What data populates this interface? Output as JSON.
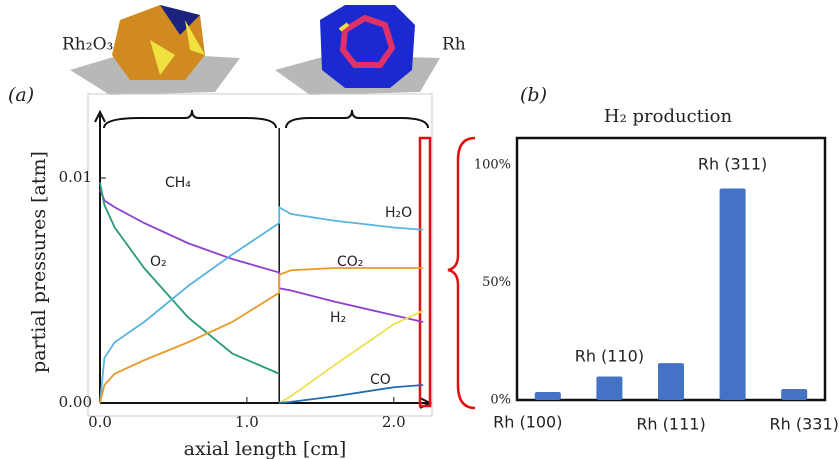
{
  "crystals": [
    "Rh₂O₃",
    "Rh"
  ],
  "chart_data": [
    {
      "type": "line",
      "panel": "(a)",
      "ylabel": "partial pressures [atm]",
      "xlabel": "axial length [cm]",
      "x": [
        0,
        0.03,
        0.1,
        0.3,
        0.6,
        0.9,
        1.22,
        1.22,
        1.3,
        1.6,
        2.0,
        2.2
      ],
      "xlim": [
        0,
        2.26
      ],
      "ylim": [
        0,
        0.0128
      ],
      "xticks": [
        {
          "value": 0,
          "label": "0.0"
        },
        {
          "value": 1,
          "label": "1.0"
        },
        {
          "value": 2,
          "label": "2.0"
        }
      ],
      "yticks": [
        {
          "value": 0,
          "label": "0.00"
        },
        {
          "value": 0.01,
          "label": "0.01"
        }
      ],
      "series": [
        {
          "name": "CH₄",
          "color": "#8e3fd1",
          "values": [
            0.0095,
            0.009,
            0.0087,
            0.008,
            0.0071,
            0.0064,
            0.0058,
            0.0051,
            0.005,
            0.0045,
            0.0039,
            0.0036
          ]
        },
        {
          "name": "O₂",
          "color": "#2a9a78",
          "values": [
            0.0098,
            0.0088,
            0.0078,
            0.006,
            0.0038,
            0.0022,
            0.0013,
            null,
            null,
            null,
            null,
            null
          ]
        },
        {
          "name": "H₂O",
          "color": "#5ab4e0",
          "values": [
            0,
            0.002,
            0.0027,
            0.0036,
            0.0052,
            0.0066,
            0.008,
            0.0087,
            0.0084,
            0.0081,
            0.0078,
            0.0077
          ]
        },
        {
          "name": "CO₂",
          "color": "#e89a2a",
          "values": [
            0,
            0.0008,
            0.0013,
            0.0019,
            0.0027,
            0.0036,
            0.0049,
            0.0057,
            0.0059,
            0.006,
            0.006,
            0.006
          ]
        },
        {
          "name": "H₂",
          "color": "#f0e050",
          "values": [
            null,
            null,
            null,
            null,
            null,
            null,
            null,
            0,
            0.0003,
            0.0017,
            0.0035,
            0.0041
          ]
        },
        {
          "name": "CO",
          "color": "#1f6fb0",
          "values": [
            null,
            null,
            null,
            null,
            null,
            null,
            null,
            0,
            5e-05,
            0.0003,
            0.0007,
            0.0008
          ]
        }
      ]
    },
    {
      "type": "bar",
      "panel": "(b)",
      "title": "H₂ production",
      "categories": [
        "Rh (100)",
        "Rh (110)",
        "Rh (111)",
        "Rh (311)",
        "Rh (331)"
      ],
      "category_colors": [
        "#e0303a",
        "#f0b020",
        "#5a7aa8",
        "#c030e0",
        "#30b060"
      ],
      "values": [
        3.4,
        10,
        15.7,
        90,
        4.7
      ],
      "color": "#4472c4",
      "ylim": [
        0,
        111.5
      ],
      "yticks": [
        {
          "value": 0,
          "label": "0%"
        },
        {
          "value": 50,
          "label": "50%"
        },
        {
          "value": 100,
          "label": "100%"
        }
      ]
    }
  ]
}
